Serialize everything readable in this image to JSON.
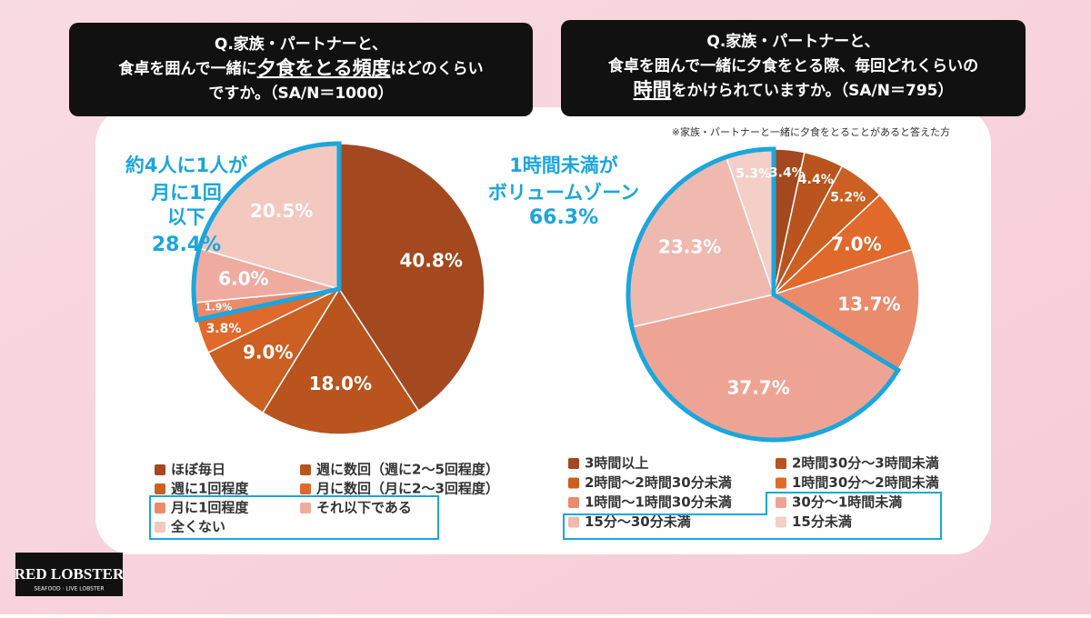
{
  "chart_data": [
    {
      "type": "pie",
      "title": [
        [
          "Q.家族・パートナーと、"
        ],
        [
          "食卓を囲んで一緒に",
          {
            "text": "夕食をとる頻度",
            "style": "underline"
          },
          "はどのくらい"
        ],
        [
          "ですか。（SA/N＝1000）"
        ]
      ],
      "categories": [
        "ほぼ毎日",
        "週に数回（週に2～5回程度）",
        "週に1回程度",
        "月に数回（月に2～3回程度）",
        "月に1回程度",
        "それ以下である",
        "全くない"
      ],
      "values": [
        40.8,
        18.0,
        9.0,
        3.8,
        1.9,
        6.0,
        20.5
      ],
      "value_labels": [
        "40.8%",
        "18.0%",
        "9.0%",
        "3.8%",
        "1.9%",
        "6.0%",
        "20.5%"
      ],
      "colors": [
        "#a3481f",
        "#b9541f",
        "#cc5f22",
        "#e0692b",
        "#ea8b6c",
        "#f0aba1",
        "#f3c8bf"
      ],
      "highlight_from": 4,
      "annotation": {
        "lines": [
          "約4人に1人が",
          "月に1回",
          "以下"
        ],
        "value": 28.4,
        "value_label": "28.4%"
      }
    },
    {
      "type": "pie",
      "title": [
        [
          "Q.家族・パートナーと、"
        ],
        [
          "食卓を囲んで一緒に夕食をとる際、毎回どれくらいの"
        ],
        [
          {
            "text": "時間",
            "style": "underline"
          },
          "をかけられていますか。（SA/N＝795）"
        ]
      ],
      "subtitle": "※家族・パートナーと一緒に夕食をとることがあると答えた方",
      "categories": [
        "3時間以上",
        "2時間30分～3時間未満",
        "2時間～2時間30分未満",
        "1時間30分～2時間未満",
        "1時間～1時間30分未満",
        "30分～1時間未満",
        "15分～30分未満",
        "15分未満"
      ],
      "values": [
        3.4,
        4.4,
        5.2,
        7.0,
        13.7,
        37.7,
        23.3,
        5.3
      ],
      "value_labels": [
        "3.4%",
        "4.4%",
        "5.2%",
        "7.0%",
        "13.7%",
        "37.7%",
        "23.3%",
        "5.3%"
      ],
      "colors": [
        "#a3481f",
        "#b9541f",
        "#cc5f22",
        "#e0692b",
        "#ea8b6c",
        "#eea495",
        "#f0b9af",
        "#f3cfc8"
      ],
      "highlight_from": 5,
      "annotation": {
        "lines": [
          "1時間未満が",
          "ボリュームゾーン"
        ],
        "value": 66.3,
        "value_label": "66.3%"
      }
    }
  ],
  "logo": {
    "name": "RED LOBSTER",
    "tagline": "SEAFOOD · LIVE LOBSTER"
  }
}
